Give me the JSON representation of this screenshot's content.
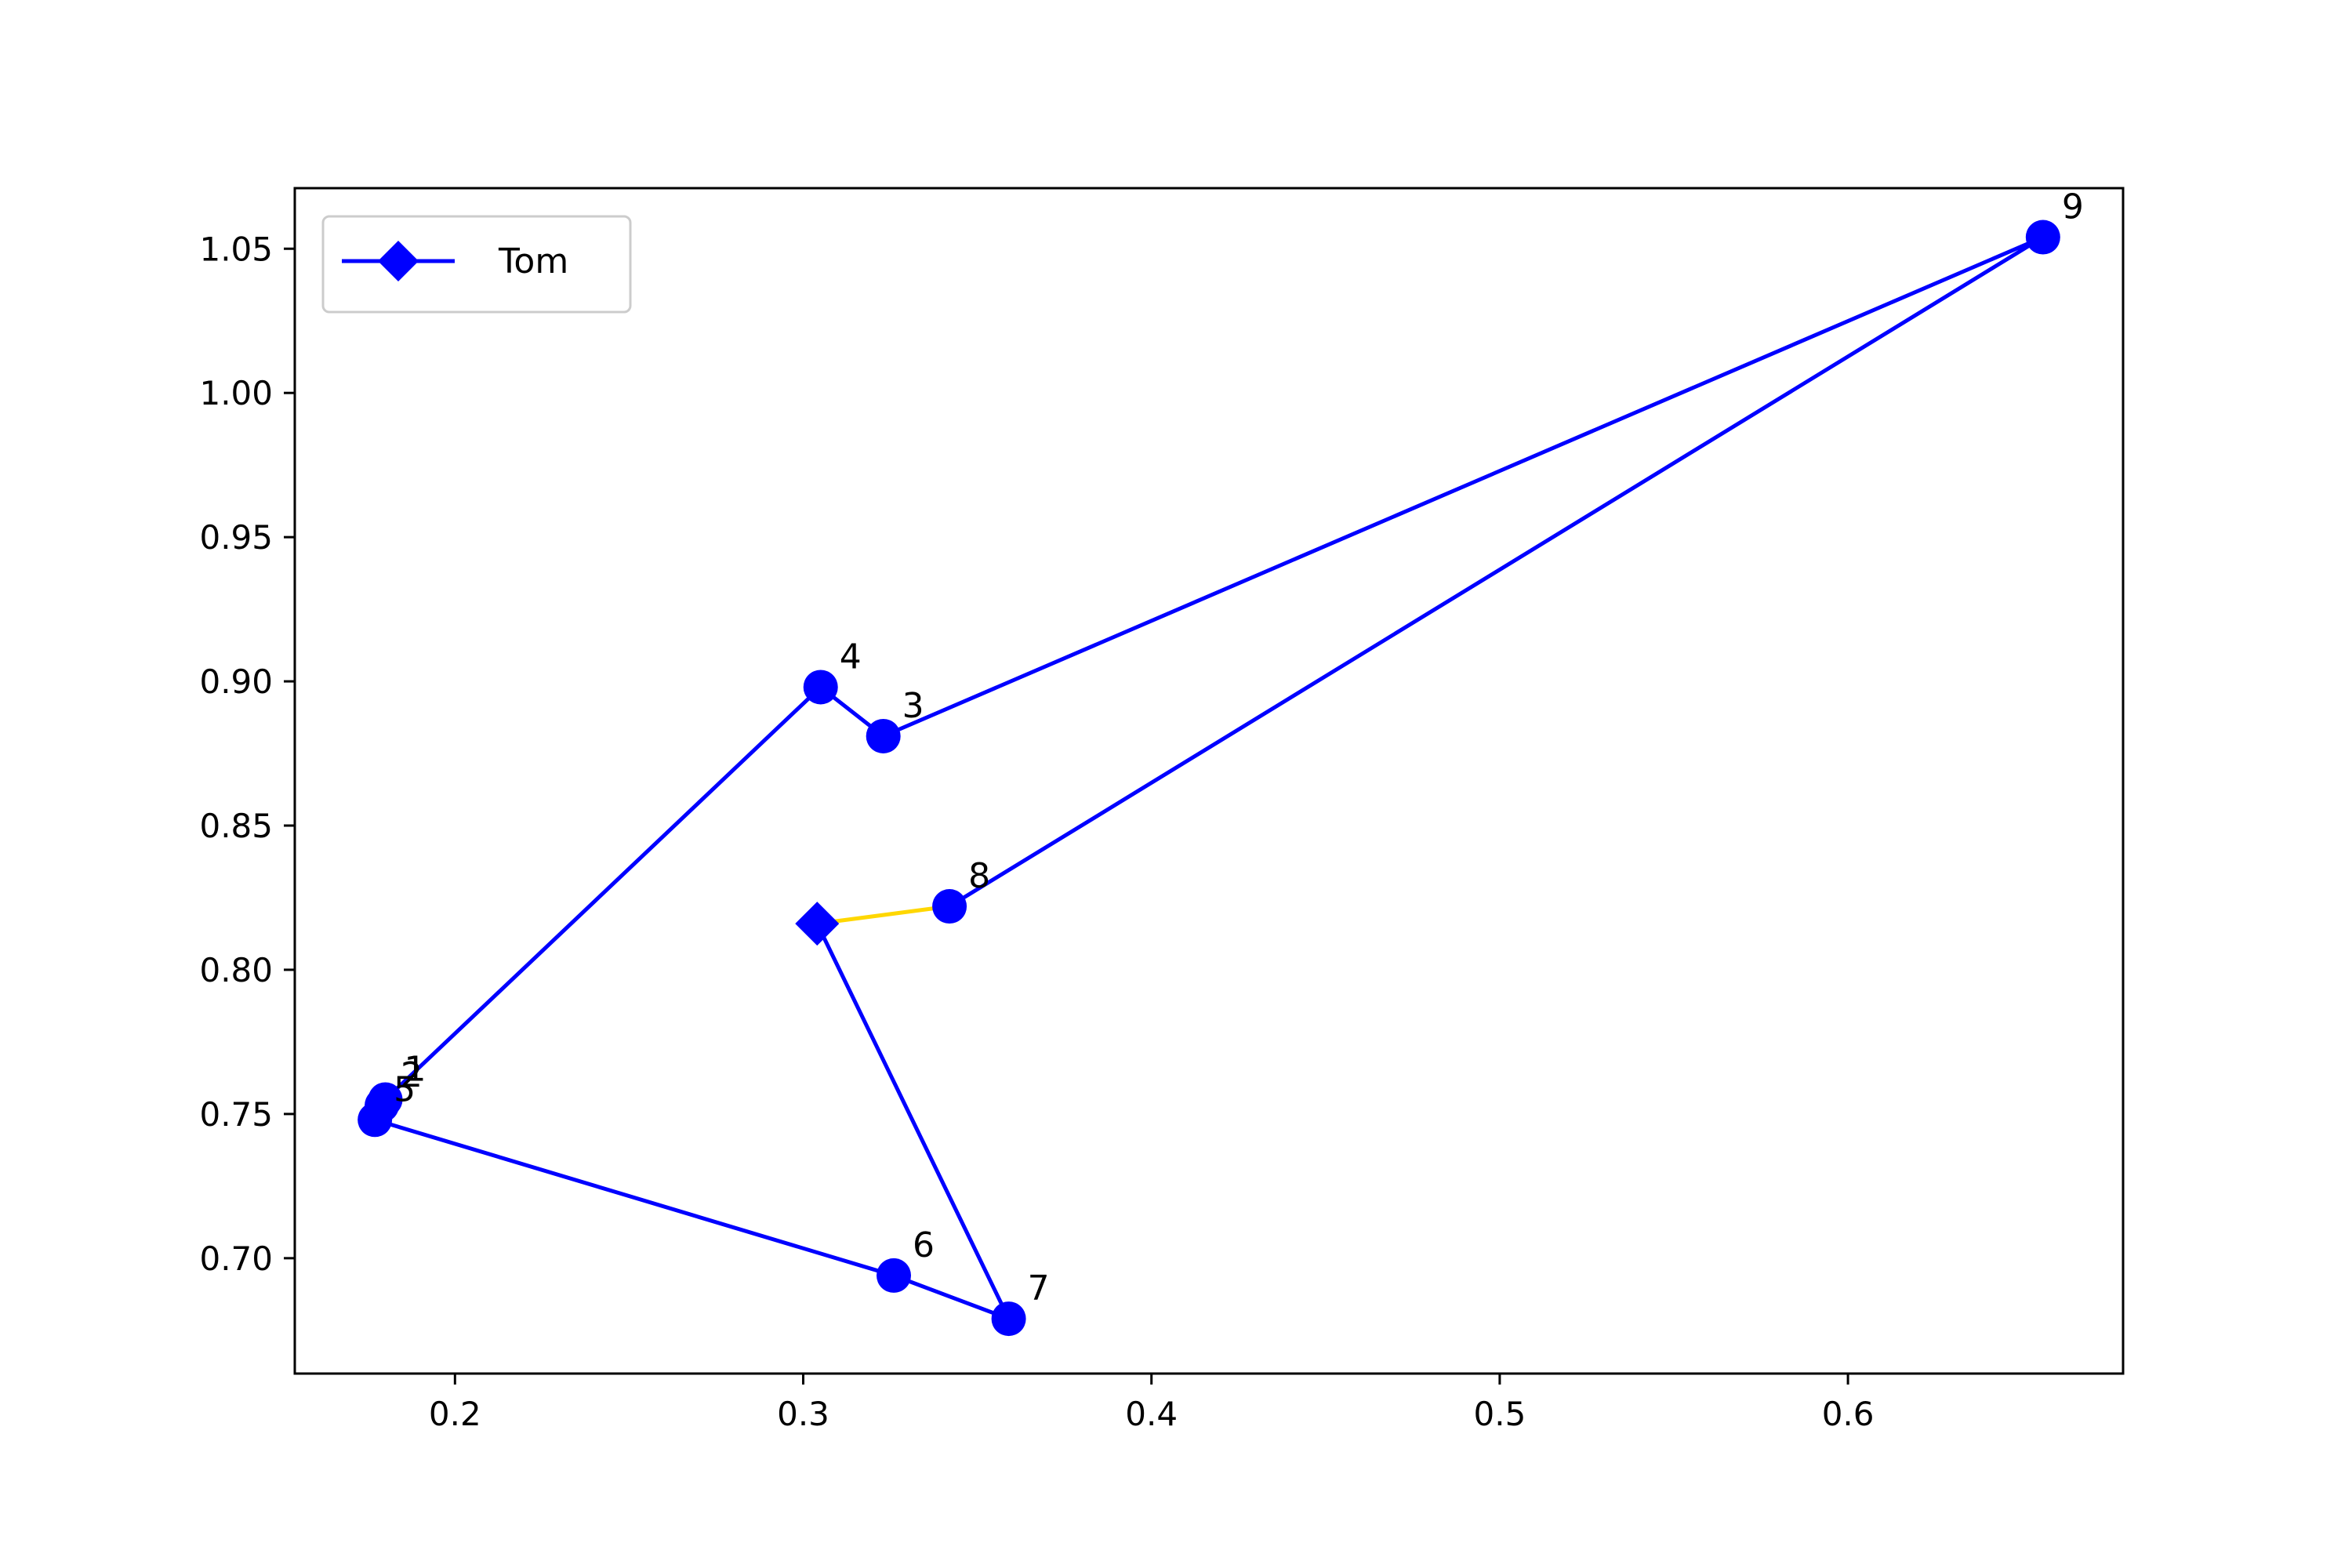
{
  "chart_data": {
    "type": "line",
    "title": "",
    "xlabel": "",
    "ylabel": "",
    "xlim": [
      0.154,
      0.679
    ],
    "ylim": [
      0.66,
      1.071
    ],
    "x_ticks": [
      0.2,
      0.3,
      0.4,
      0.5,
      0.6
    ],
    "x_tick_labels": [
      "0.2",
      "0.3",
      "0.4",
      "0.5",
      "0.6"
    ],
    "y_ticks": [
      0.7,
      0.75,
      0.8,
      0.85,
      0.9,
      0.95,
      1.0,
      1.05
    ],
    "y_tick_labels": [
      "0.70",
      "0.75",
      "0.80",
      "0.85",
      "0.90",
      "0.95",
      "1.00",
      "1.05"
    ],
    "grid": false,
    "legend": {
      "placement": "top-left",
      "entries": [
        {
          "name": "Tom",
          "marker": "diamond",
          "color": "#0000ff"
        }
      ]
    },
    "series": [
      {
        "name": "Tom",
        "color": "#0000ff",
        "points": [
          {
            "label": "1",
            "x": 0.18,
            "y": 0.755
          },
          {
            "label": "4",
            "x": 0.305,
            "y": 0.898
          },
          {
            "label": "3",
            "x": 0.323,
            "y": 0.881
          },
          {
            "label": "9",
            "x": 0.656,
            "y": 1.054
          },
          {
            "label": "8",
            "x": 0.342,
            "y": 0.822
          }
        ]
      },
      {
        "name": "Tom",
        "color": "#0000ff",
        "points": [
          {
            "label": "2",
            "x": 0.179,
            "y": 0.753
          },
          {
            "label": "5",
            "x": 0.177,
            "y": 0.748
          },
          {
            "label": "6",
            "x": 0.326,
            "y": 0.694
          },
          {
            "label": "7",
            "x": 0.359,
            "y": 0.679
          }
        ]
      }
    ],
    "end_marker": {
      "shape": "diamond",
      "color": "#0000ff",
      "x": 0.304,
      "y": 0.816
    },
    "connector": {
      "color": "#ffd700",
      "from": {
        "x": 0.304,
        "y": 0.816
      },
      "to": {
        "x": 0.342,
        "y": 0.822
      }
    }
  }
}
